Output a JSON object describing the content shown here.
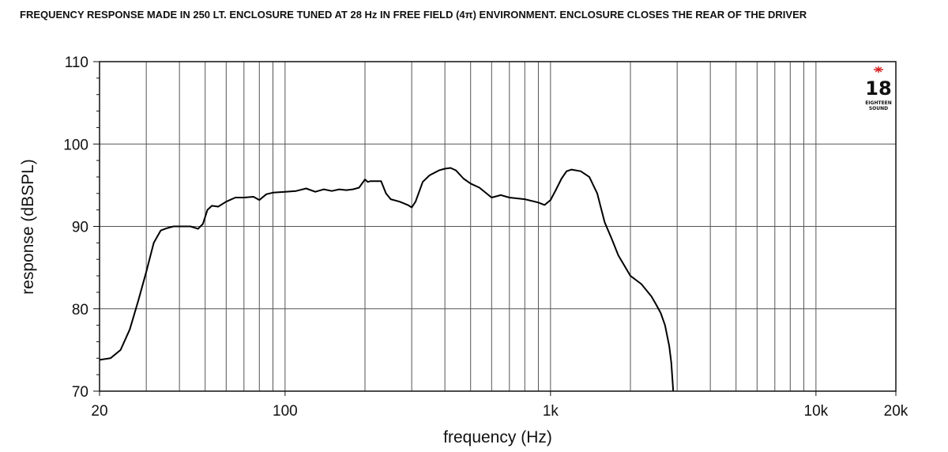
{
  "chart_data": {
    "type": "line",
    "title": "FREQUENCY RESPONSE MADE IN 250 LT. ENCLOSURE TUNED AT 28 Hz IN FREE FIELD (4π) ENVIRONMENT. ENCLOSURE CLOSES THE REAR OF THE DRIVER",
    "xlabel": "frequency (Hz)",
    "ylabel": "response (dBSPL)",
    "x_scale": "log",
    "xlim": [
      20,
      20000
    ],
    "ylim": [
      70,
      110
    ],
    "x_ticks": [
      {
        "value": 20,
        "label": "20"
      },
      {
        "value": 100,
        "label": "100"
      },
      {
        "value": 1000,
        "label": "1k"
      },
      {
        "value": 10000,
        "label": "10k"
      },
      {
        "value": 20000,
        "label": "20k"
      }
    ],
    "y_ticks": [
      70,
      80,
      90,
      100,
      110
    ],
    "grid": true,
    "series": [
      {
        "x": [
          20,
          22,
          24,
          26,
          28,
          30,
          32,
          34,
          36,
          38,
          40,
          44,
          47,
          49,
          51,
          53,
          56,
          60,
          65,
          70,
          76,
          80,
          85,
          90,
          100,
          110,
          120,
          130,
          140,
          150,
          160,
          170,
          180,
          190,
          200,
          205,
          210,
          220,
          230,
          240,
          250,
          270,
          290,
          300,
          310,
          330,
          350,
          380,
          400,
          420,
          440,
          470,
          500,
          540,
          600,
          650,
          700,
          800,
          900,
          950,
          1000,
          1050,
          1100,
          1150,
          1200,
          1300,
          1400,
          1500,
          1600,
          1700,
          1800,
          2000,
          2200,
          2400,
          2500,
          2600,
          2700,
          2800,
          2850,
          2900
        ],
        "y": [
          73.8,
          74.0,
          75.0,
          77.5,
          81.0,
          84.5,
          88.0,
          89.5,
          89.8,
          90.0,
          90.0,
          90.0,
          89.7,
          90.3,
          92.0,
          92.5,
          92.4,
          93.0,
          93.5,
          93.5,
          93.6,
          93.2,
          93.9,
          94.1,
          94.2,
          94.3,
          94.6,
          94.2,
          94.5,
          94.3,
          94.5,
          94.4,
          94.5,
          94.7,
          95.7,
          95.4,
          95.5,
          95.5,
          95.5,
          94.0,
          93.3,
          93.0,
          92.6,
          92.3,
          93.0,
          95.4,
          96.2,
          96.8,
          97.0,
          97.1,
          96.8,
          95.8,
          95.2,
          94.7,
          93.5,
          93.8,
          93.5,
          93.3,
          92.9,
          92.6,
          93.2,
          94.5,
          95.8,
          96.7,
          96.9,
          96.7,
          96.0,
          94.0,
          90.5,
          88.5,
          86.5,
          84.0,
          83.0,
          81.5,
          80.5,
          79.5,
          78.0,
          75.5,
          73.5,
          70.0
        ]
      }
    ]
  }
}
